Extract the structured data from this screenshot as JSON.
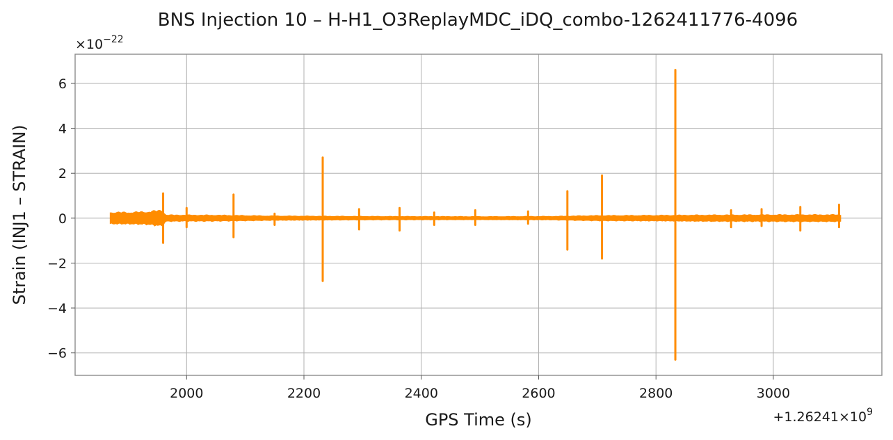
{
  "chart_data": {
    "type": "line",
    "title": "BNS Injection 10 – H-H1_O3ReplayMDC_iDQ_combo-1262411776-4096",
    "xlabel": "GPS Time (s)",
    "ylabel": "Strain (INJ1 – STRAIN)",
    "x_offset_label": "+1.26241×10",
    "x_offset_exponent": "9",
    "y_multiplier_label": "×10",
    "y_multiplier_exponent": "−22",
    "xlim": [
      1810,
      3185
    ],
    "ylim": [
      -7.0,
      7.3
    ],
    "x_ticks": [
      2000,
      2200,
      2400,
      2600,
      2800,
      3000
    ],
    "x_tick_labels": [
      "2000",
      "2200",
      "2400",
      "2600",
      "2800",
      "3000"
    ],
    "y_ticks": [
      -6,
      -4,
      -2,
      0,
      2,
      4,
      6
    ],
    "y_tick_labels": [
      "−6",
      "−4",
      "−2",
      "0",
      "2",
      "4",
      "6"
    ],
    "grid": true,
    "line_color": "#ff8c00",
    "series": [
      {
        "x_start": 1870,
        "x_end": 3115,
        "baseline_envelope": [
          [
            1870,
            0.28
          ],
          [
            1900,
            0.28
          ],
          [
            1930,
            0.3
          ],
          [
            1958,
            0.38
          ],
          [
            1965,
            0.15
          ],
          [
            2050,
            0.14
          ],
          [
            2150,
            0.1
          ],
          [
            2300,
            0.08
          ],
          [
            2500,
            0.07
          ],
          [
            2620,
            0.08
          ],
          [
            2700,
            0.12
          ],
          [
            2800,
            0.13
          ],
          [
            2900,
            0.15
          ],
          [
            3000,
            0.16
          ],
          [
            3115,
            0.16
          ]
        ],
        "transients": [
          {
            "x": 1960,
            "max": 1.1,
            "min": -1.1
          },
          {
            "x": 2000,
            "max": 0.45,
            "min": -0.4
          },
          {
            "x": 2080,
            "max": 1.05,
            "min": -0.85
          },
          {
            "x": 2150,
            "max": 0.2,
            "min": -0.3
          },
          {
            "x": 2232,
            "max": 2.7,
            "min": -2.8
          },
          {
            "x": 2294,
            "max": 0.4,
            "min": -0.5
          },
          {
            "x": 2363,
            "max": 0.45,
            "min": -0.55
          },
          {
            "x": 2422,
            "max": 0.25,
            "min": -0.3
          },
          {
            "x": 2492,
            "max": 0.35,
            "min": -0.3
          },
          {
            "x": 2582,
            "max": 0.3,
            "min": -0.25
          },
          {
            "x": 2649,
            "max": 1.2,
            "min": -1.4
          },
          {
            "x": 2708,
            "max": 1.9,
            "min": -1.8
          },
          {
            "x": 2833,
            "max": 6.6,
            "min": -6.3
          },
          {
            "x": 2928,
            "max": 0.35,
            "min": -0.4
          },
          {
            "x": 2980,
            "max": 0.4,
            "min": -0.35
          },
          {
            "x": 3046,
            "max": 0.5,
            "min": -0.55
          },
          {
            "x": 3112,
            "max": 0.6,
            "min": -0.4
          }
        ]
      }
    ]
  }
}
